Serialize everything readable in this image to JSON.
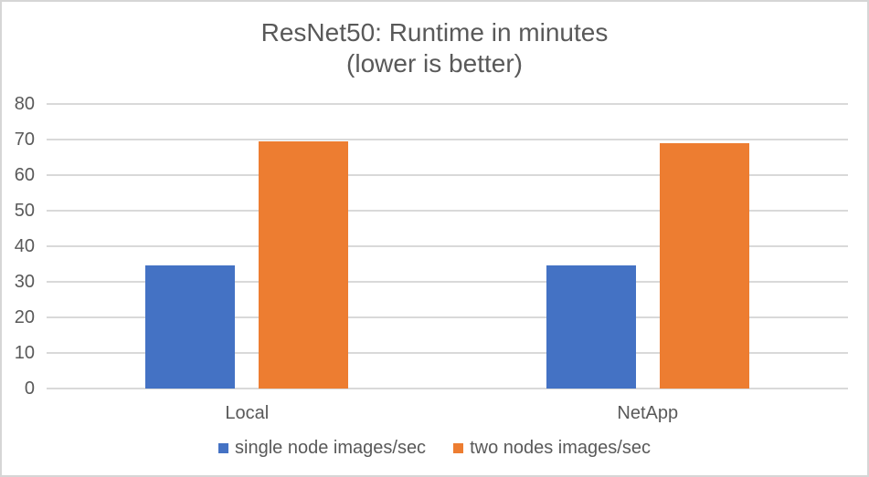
{
  "chart_data": {
    "type": "bar",
    "title": "ResNet50: Runtime in minutes",
    "subtitle": "(lower is better)",
    "categories": [
      "Local",
      "NetApp"
    ],
    "series": [
      {
        "name": "single node images/sec",
        "color": "#4472C4",
        "values": [
          34.5,
          34.5
        ]
      },
      {
        "name": "two nodes images/sec",
        "color": "#ED7D31",
        "values": [
          69.5,
          69
        ]
      }
    ],
    "ylim": [
      0,
      80
    ],
    "yticks": [
      0,
      10,
      20,
      30,
      40,
      50,
      60,
      70,
      80
    ],
    "grid": true,
    "legend_position": "bottom"
  },
  "colors": {
    "text": "#595959",
    "gridline": "#D9D9D9",
    "axis_line": "#D9D9D9",
    "background": "#FFFFFF",
    "border": "#D6D6D6"
  }
}
